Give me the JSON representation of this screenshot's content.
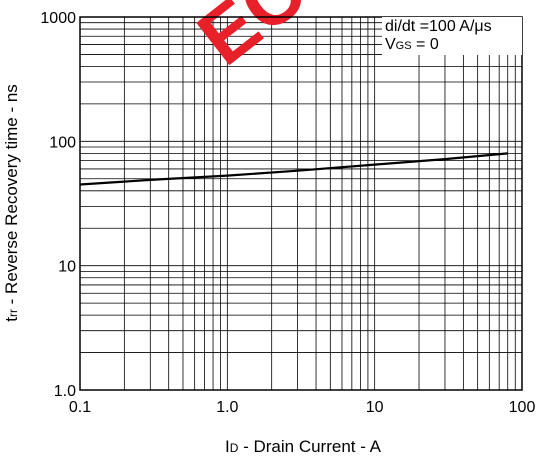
{
  "watermark": {
    "text": "EC",
    "color": "#e8202a"
  },
  "chart_data": {
    "type": "line",
    "x_scale": "log",
    "y_scale": "log",
    "xlim": [
      0.1,
      100
    ],
    "ylim": [
      1.0,
      1000
    ],
    "grid": true,
    "x_ticks": [
      {
        "value": 0.1,
        "label": "0.1"
      },
      {
        "value": 1,
        "label": "1.0"
      },
      {
        "value": 10,
        "label": "10"
      },
      {
        "value": 100,
        "label": "100"
      }
    ],
    "y_ticks": [
      {
        "value": 1,
        "label": "1.0"
      },
      {
        "value": 10,
        "label": "10"
      },
      {
        "value": 100,
        "label": "100"
      },
      {
        "value": 1000,
        "label": "1000"
      }
    ],
    "xlabel": {
      "main": "I",
      "sub": "D",
      "rest": " - Drain Current - A"
    },
    "ylabel": {
      "main": "t",
      "sub": "rr",
      "rest": " - Reverse Recovery time - ns"
    },
    "annotations": {
      "line1": "di/dt =100 A/μs",
      "line2_main": "V",
      "line2_sub": "GS",
      "line2_rest": " = 0"
    },
    "series": [
      {
        "color": "#000000",
        "x": [
          0.1,
          0.3,
          1,
          3,
          10,
          30,
          80
        ],
        "y": [
          45,
          49,
          53,
          58,
          65,
          72,
          80
        ]
      }
    ]
  }
}
